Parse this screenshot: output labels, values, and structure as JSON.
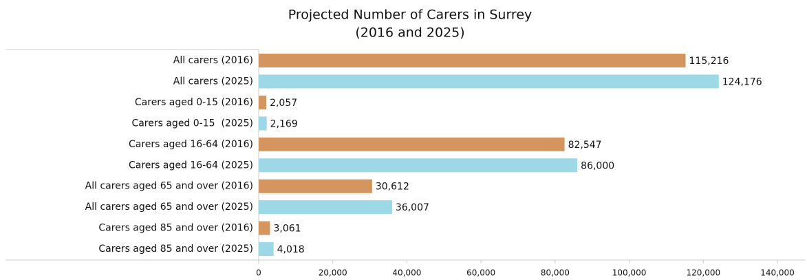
{
  "chart_data": {
    "type": "bar",
    "orientation": "horizontal",
    "title": [
      "Projected Number of Carers in Surrey",
      "(2016 and 2025)"
    ],
    "categories": [
      "All carers (2016)",
      "All carers (2025)",
      "Carers aged 0-15 (2016)",
      "Carers aged 0-15  (2025)",
      "Carers aged 16-64 (2016)",
      "Carers aged 16-64 (2025)",
      "All carers aged 65 and over (2016)",
      "All carers aged 65 and over (2025)",
      "Carers aged 85 and over (2016)",
      "Carers aged 85 and over (2025)"
    ],
    "values": [
      115216,
      124176,
      2057,
      2169,
      82547,
      86000,
      30612,
      36007,
      3061,
      4018
    ],
    "value_labels": [
      "115,216",
      "124,176",
      "2,057",
      "2,169",
      "82,547",
      "86,000",
      "30,612",
      "36,007",
      "3,061",
      "4,018"
    ],
    "colors": [
      "#d4955e",
      "#9dd8e6",
      "#d4955e",
      "#9dd8e6",
      "#d4955e",
      "#9dd8e6",
      "#d4955e",
      "#9dd8e6",
      "#d4955e",
      "#9dd8e6"
    ],
    "xlim": [
      0,
      140000
    ],
    "xticks": [
      0,
      {
        "value": 20000,
        "label": "20,000"
      },
      {
        "value": 40000,
        "label": "40,000"
      },
      {
        "value": 60000,
        "label": "60,000"
      },
      {
        "value": 80000,
        "label": "80,000"
      },
      {
        "value": 100000,
        "label": "100,000"
      },
      {
        "value": 120000,
        "label": "120,000"
      },
      {
        "value": 140000,
        "label": "140,000"
      }
    ],
    "grid": false
  }
}
